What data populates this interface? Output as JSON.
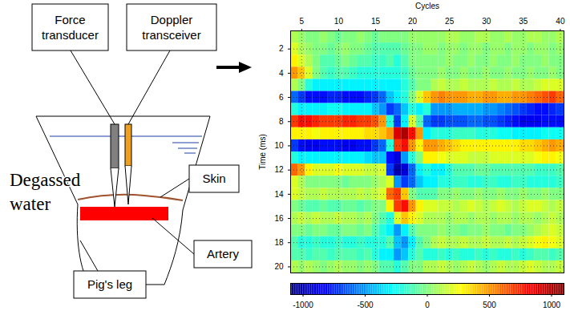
{
  "diagram": {
    "callouts": [
      {
        "label": [
          "Force",
          "transducer"
        ]
      },
      {
        "label": [
          "Doppler",
          "transceiver"
        ]
      },
      {
        "label": [
          "Skin"
        ]
      },
      {
        "label": [
          "Artery"
        ]
      },
      {
        "label": [
          "Pig's leg"
        ]
      }
    ],
    "medium": [
      "Degassed",
      "water"
    ]
  },
  "chart_data": {
    "type": "heatmap",
    "xlabel": "Cycles",
    "ylabel": "Time (ms)",
    "x": [
      4,
      5,
      6,
      7,
      8,
      9,
      10,
      11,
      12,
      13,
      14,
      15,
      16,
      17,
      18,
      19,
      20,
      21,
      22,
      23,
      24,
      25,
      26,
      27,
      28,
      29,
      30,
      31,
      32,
      33,
      34,
      35,
      36,
      37,
      38,
      39,
      40
    ],
    "y": [
      1,
      2,
      3,
      4,
      5,
      6,
      7,
      8,
      9,
      10,
      11,
      12,
      13,
      14,
      15,
      16,
      17,
      18,
      19,
      20
    ],
    "values": [
      [
        100,
        50,
        0,
        0,
        50,
        0,
        -50,
        0,
        0,
        50,
        0,
        -50,
        0,
        0,
        0,
        0,
        50,
        50,
        50,
        50,
        50,
        100,
        100,
        50,
        50,
        100,
        100,
        50,
        50,
        100,
        50,
        50,
        100,
        100,
        50,
        50,
        100
      ],
      [
        200,
        100,
        50,
        0,
        0,
        -50,
        0,
        50,
        0,
        0,
        -50,
        -100,
        -100,
        -100,
        -100,
        -50,
        0,
        0,
        50,
        50,
        0,
        50,
        50,
        0,
        50,
        50,
        0,
        50,
        50,
        0,
        50,
        50,
        0,
        50,
        50,
        0,
        50
      ],
      [
        300,
        200,
        100,
        0,
        -100,
        -100,
        -50,
        0,
        -50,
        -100,
        -100,
        -150,
        -150,
        -100,
        -200,
        -100,
        0,
        0,
        0,
        0,
        0,
        50,
        0,
        0,
        50,
        0,
        0,
        50,
        0,
        0,
        50,
        0,
        0,
        0,
        50,
        0,
        0
      ],
      [
        500,
        400,
        200,
        0,
        -100,
        -150,
        -100,
        -100,
        -150,
        -200,
        -200,
        -200,
        -200,
        -200,
        -200,
        -150,
        -50,
        0,
        0,
        0,
        50,
        0,
        0,
        50,
        0,
        0,
        50,
        0,
        0,
        50,
        0,
        0,
        50,
        0,
        0,
        50,
        0
      ],
      [
        100,
        0,
        -200,
        -300,
        -300,
        -300,
        -300,
        -300,
        -300,
        -300,
        -300,
        -300,
        -300,
        -300,
        -300,
        -200,
        -100,
        0,
        0,
        100,
        150,
        100,
        100,
        150,
        100,
        100,
        100,
        150,
        100,
        100,
        150,
        100,
        100,
        150,
        200,
        200,
        200
      ],
      [
        -600,
        -700,
        -800,
        -800,
        -800,
        -750,
        -750,
        -800,
        -800,
        -800,
        -750,
        -700,
        -600,
        -400,
        -300,
        -200,
        0,
        200,
        400,
        500,
        550,
        500,
        500,
        500,
        450,
        450,
        500,
        500,
        450,
        450,
        500,
        500,
        550,
        600,
        650,
        700,
        600
      ],
      [
        -200,
        -300,
        -300,
        -300,
        -300,
        -250,
        -250,
        -300,
        -300,
        -300,
        -300,
        -400,
        -500,
        -700,
        -600,
        -400,
        -200,
        -300,
        -200,
        -500,
        -500,
        -500,
        -450,
        -450,
        -450,
        -450,
        -500,
        -500,
        -550,
        -600,
        -650,
        -700,
        -750,
        -800,
        -800,
        -750,
        -700
      ],
      [
        700,
        800,
        800,
        750,
        700,
        700,
        700,
        750,
        750,
        700,
        700,
        650,
        500,
        -200,
        -700,
        -300,
        200,
        -100,
        -600,
        -700,
        -700,
        -650,
        -650,
        -650,
        -600,
        -600,
        -650,
        -650,
        -700,
        -750,
        -800,
        -850,
        -850,
        -850,
        -800,
        -800,
        -800
      ],
      [
        300,
        300,
        300,
        250,
        300,
        300,
        300,
        300,
        300,
        300,
        350,
        350,
        400,
        500,
        900,
        1000,
        800,
        500,
        -300,
        -200,
        -200,
        -200,
        -150,
        -150,
        -150,
        -200,
        -200,
        -200,
        -250,
        -250,
        -300,
        -300,
        -300,
        -300,
        -250,
        -250,
        -250
      ],
      [
        -700,
        -800,
        -850,
        -850,
        -800,
        -800,
        -800,
        -850,
        -850,
        -800,
        -800,
        -700,
        -600,
        -200,
        700,
        800,
        500,
        300,
        500,
        500,
        450,
        400,
        350,
        300,
        300,
        300,
        300,
        300,
        300,
        300,
        300,
        350,
        350,
        400,
        450,
        500,
        450
      ],
      [
        -200,
        -300,
        -300,
        -300,
        -300,
        -300,
        -300,
        -300,
        -300,
        -300,
        -350,
        -400,
        -400,
        -800,
        -900,
        -500,
        -200,
        0,
        300,
        300,
        250,
        200,
        200,
        200,
        150,
        150,
        150,
        200,
        200,
        200,
        200,
        200,
        200,
        250,
        300,
        300,
        250
      ],
      [
        600,
        500,
        300,
        200,
        200,
        200,
        250,
        200,
        200,
        200,
        150,
        150,
        200,
        -700,
        -1000,
        -900,
        -600,
        -300,
        -200,
        -300,
        -300,
        -200,
        -100,
        -100,
        -100,
        -50,
        -50,
        -100,
        -100,
        -100,
        -100,
        -100,
        -100,
        -150,
        -150,
        -150,
        -100
      ],
      [
        200,
        100,
        0,
        0,
        0,
        0,
        0,
        -50,
        0,
        0,
        0,
        50,
        100,
        200,
        -500,
        -700,
        -600,
        -400,
        -300,
        -300,
        -200,
        -200,
        -150,
        -150,
        -200,
        -200,
        -150,
        -150,
        -200,
        -200,
        -150,
        -150,
        -200,
        -200,
        -200,
        -200,
        -150
      ],
      [
        200,
        150,
        100,
        100,
        150,
        100,
        100,
        100,
        100,
        150,
        100,
        150,
        200,
        600,
        700,
        400,
        0,
        -100,
        -100,
        -100,
        0,
        0,
        50,
        0,
        0,
        50,
        0,
        0,
        50,
        0,
        0,
        50,
        0,
        0,
        50,
        0,
        0
      ],
      [
        0,
        -50,
        -100,
        -100,
        -50,
        -100,
        -100,
        -50,
        -50,
        -100,
        -50,
        0,
        0,
        300,
        700,
        800,
        500,
        300,
        200,
        200,
        150,
        150,
        100,
        150,
        200,
        150,
        100,
        150,
        200,
        150,
        100,
        150,
        200,
        200,
        150,
        100,
        150
      ],
      [
        100,
        150,
        100,
        150,
        100,
        100,
        150,
        100,
        100,
        50,
        100,
        0,
        -100,
        -200,
        200,
        400,
        300,
        200,
        100,
        100,
        100,
        50,
        100,
        100,
        50,
        100,
        100,
        50,
        100,
        100,
        50,
        100,
        100,
        50,
        100,
        150,
        100
      ],
      [
        0,
        0,
        -50,
        0,
        0,
        -50,
        -50,
        0,
        0,
        -50,
        0,
        -100,
        -200,
        -300,
        -500,
        -300,
        -100,
        0,
        0,
        0,
        50,
        0,
        0,
        -50,
        0,
        0,
        50,
        0,
        0,
        -50,
        0,
        0,
        50,
        100,
        150,
        200,
        150
      ],
      [
        -100,
        -200,
        -200,
        -150,
        -200,
        -200,
        -150,
        -200,
        -200,
        -150,
        -200,
        -200,
        -200,
        -100,
        -400,
        -500,
        -300,
        -100,
        0,
        100,
        150,
        100,
        100,
        150,
        100,
        100,
        150,
        100,
        100,
        150,
        100,
        150,
        200,
        250,
        300,
        250,
        200
      ],
      [
        -100,
        -100,
        -150,
        -100,
        -100,
        -150,
        -100,
        -100,
        -100,
        -150,
        -100,
        -200,
        -300,
        -300,
        -500,
        -400,
        -200,
        -100,
        -200,
        -200,
        -150,
        -200,
        -150,
        -200,
        -200,
        -150,
        -200,
        -150,
        -200,
        -200,
        -150,
        -200,
        -150,
        -100,
        -100,
        -150,
        -100
      ],
      [
        100,
        50,
        100,
        50,
        0,
        50,
        100,
        50,
        50,
        0,
        50,
        0,
        -100,
        -100,
        -200,
        -100,
        0,
        0,
        100,
        100,
        150,
        100,
        50,
        100,
        150,
        100,
        50,
        100,
        150,
        100,
        100,
        150,
        200,
        150,
        100,
        100,
        150
      ]
    ],
    "xlim": [
      3.5,
      40.5
    ],
    "ylim": [
      0.5,
      20.5
    ],
    "xticks": [
      5,
      10,
      15,
      20,
      25,
      30,
      35,
      40
    ],
    "yticks": [
      2,
      4,
      6,
      8,
      10,
      12,
      14,
      16,
      18,
      20
    ],
    "grid": true,
    "color": "jet",
    "colorbar": {
      "range": [
        -1100,
        1100
      ],
      "ticks": [
        -1000,
        -500,
        0,
        500,
        1000
      ]
    }
  }
}
